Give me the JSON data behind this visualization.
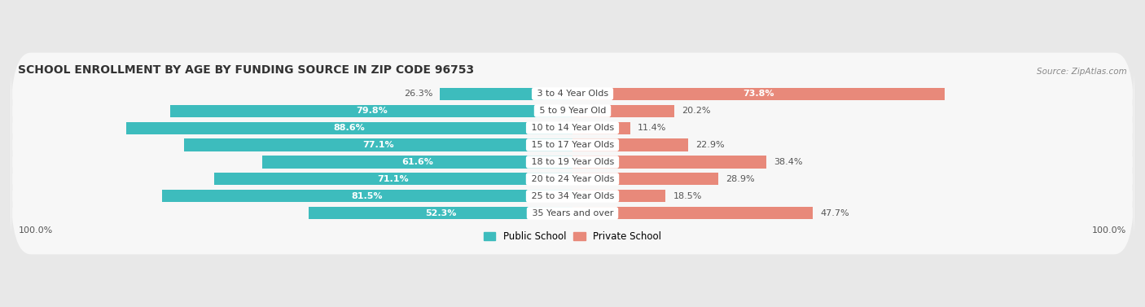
{
  "title": "SCHOOL ENROLLMENT BY AGE BY FUNDING SOURCE IN ZIP CODE 96753",
  "source": "Source: ZipAtlas.com",
  "categories": [
    "3 to 4 Year Olds",
    "5 to 9 Year Old",
    "10 to 14 Year Olds",
    "15 to 17 Year Olds",
    "18 to 19 Year Olds",
    "20 to 24 Year Olds",
    "25 to 34 Year Olds",
    "35 Years and over"
  ],
  "public_values": [
    26.3,
    79.8,
    88.6,
    77.1,
    61.6,
    71.1,
    81.5,
    52.3
  ],
  "private_values": [
    73.8,
    20.2,
    11.4,
    22.9,
    38.4,
    28.9,
    18.5,
    47.7
  ],
  "public_color": "#3dbcbd",
  "private_color": "#e8897a",
  "background_color": "#e8e8e8",
  "row_bg_color": "#f7f7f7",
  "title_fontsize": 10,
  "label_fontsize": 8,
  "value_fontsize": 8,
  "legend_fontsize": 8.5,
  "axis_label": "100.0%"
}
